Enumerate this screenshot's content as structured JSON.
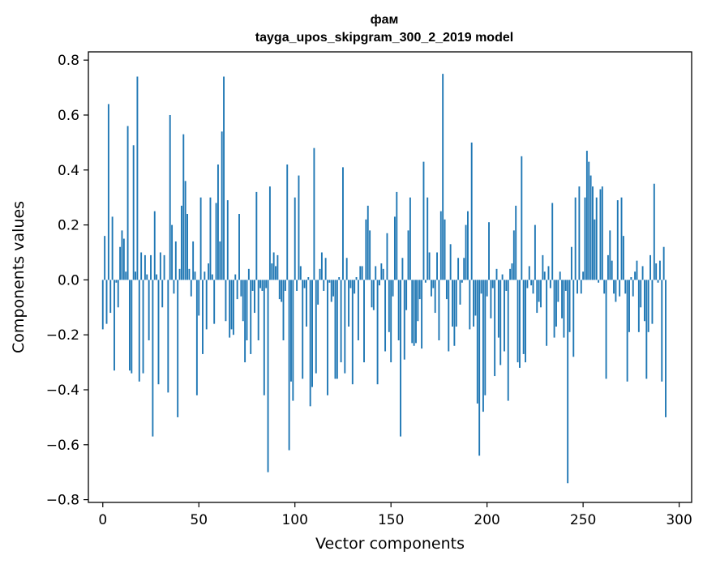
{
  "chart_data": {
    "type": "bar",
    "title": "фам",
    "subtitle": "tayga_upos_skipgram_300_2_2019 model",
    "xlabel": "Vector components",
    "ylabel": "Components values",
    "xlim": [
      -7.5,
      306.5
    ],
    "ylim": [
      -0.81,
      0.83
    ],
    "xticks": [
      0,
      50,
      100,
      150,
      200,
      250,
      300
    ],
    "yticks": [
      -0.8,
      -0.6,
      -0.4,
      -0.2,
      0.0,
      0.2,
      0.4,
      0.6,
      0.8
    ],
    "ytick_labels": [
      "−0.8",
      "−0.6",
      "−0.4",
      "−0.2",
      "0.0",
      "0.2",
      "0.4",
      "0.6",
      "0.8"
    ],
    "bar_color": "#1f77b4",
    "values": [
      -0.18,
      0.16,
      -0.16,
      0.64,
      -0.12,
      0.23,
      -0.33,
      -0.01,
      -0.1,
      0.12,
      0.18,
      0.15,
      0.03,
      0.56,
      -0.33,
      -0.34,
      0.49,
      0.03,
      0.74,
      -0.37,
      0.1,
      -0.34,
      0.09,
      0.02,
      -0.22,
      0.09,
      -0.57,
      0.25,
      0.02,
      -0.38,
      0.1,
      -0.1,
      0.09,
      0.0,
      -0.41,
      0.6,
      0.2,
      -0.05,
      0.14,
      -0.5,
      0.04,
      0.27,
      0.53,
      0.36,
      0.24,
      0.04,
      -0.06,
      0.14,
      0.03,
      -0.42,
      -0.13,
      0.3,
      -0.27,
      0.03,
      -0.18,
      0.06,
      0.3,
      0.02,
      -0.16,
      0.28,
      0.42,
      0.14,
      0.54,
      0.74,
      -0.15,
      0.29,
      -0.21,
      -0.18,
      -0.2,
      0.02,
      -0.07,
      0.24,
      -0.06,
      -0.15,
      -0.3,
      -0.22,
      0.04,
      -0.27,
      -0.04,
      -0.12,
      0.32,
      -0.22,
      -0.03,
      -0.04,
      -0.42,
      -0.03,
      -0.7,
      0.34,
      0.06,
      0.1,
      0.05,
      0.09,
      -0.07,
      -0.08,
      -0.22,
      -0.04,
      0.42,
      -0.62,
      -0.37,
      -0.44,
      0.3,
      -0.04,
      0.38,
      0.05,
      -0.36,
      -0.03,
      -0.17,
      0.01,
      -0.46,
      -0.39,
      0.48,
      -0.34,
      -0.09,
      0.04,
      0.1,
      -0.04,
      0.08,
      -0.42,
      -0.01,
      -0.08,
      -0.06,
      -0.36,
      -0.36,
      0.01,
      -0.3,
      0.41,
      -0.34,
      0.08,
      -0.17,
      -0.03,
      -0.38,
      -0.05,
      0.01,
      -0.22,
      0.05,
      0.05,
      -0.3,
      0.22,
      0.27,
      0.18,
      -0.1,
      -0.11,
      0.05,
      -0.38,
      -0.02,
      0.06,
      0.04,
      -0.26,
      0.17,
      -0.19,
      -0.3,
      -0.06,
      0.23,
      0.32,
      -0.22,
      -0.57,
      0.08,
      -0.29,
      -0.11,
      0.18,
      0.3,
      -0.23,
      -0.24,
      -0.23,
      -0.15,
      -0.07,
      -0.25,
      0.43,
      -0.01,
      0.3,
      0.1,
      -0.06,
      -0.03,
      -0.12,
      0.1,
      -0.22,
      0.25,
      0.75,
      0.22,
      -0.07,
      -0.26,
      0.13,
      -0.17,
      -0.24,
      -0.17,
      0.08,
      -0.09,
      -0.01,
      0.08,
      0.2,
      0.25,
      -0.18,
      0.5,
      -0.17,
      -0.13,
      -0.45,
      -0.64,
      -0.05,
      -0.48,
      -0.42,
      -0.06,
      0.21,
      -0.14,
      -0.03,
      -0.35,
      0.04,
      -0.21,
      -0.31,
      0.02,
      -0.26,
      -0.04,
      -0.44,
      0.04,
      0.06,
      0.18,
      0.27,
      -0.3,
      -0.32,
      0.45,
      -0.27,
      -0.3,
      -0.03,
      0.05,
      -0.02,
      -0.05,
      0.2,
      -0.12,
      -0.08,
      -0.1,
      0.09,
      0.03,
      -0.24,
      0.05,
      -0.03,
      0.28,
      -0.21,
      -0.17,
      -0.08,
      0.03,
      -0.14,
      -0.21,
      -0.04,
      -0.74,
      -0.19,
      0.12,
      -0.28,
      0.3,
      -0.05,
      0.34,
      -0.05,
      0.03,
      0.3,
      0.47,
      0.43,
      0.38,
      0.34,
      0.22,
      0.3,
      -0.01,
      0.33,
      0.34,
      -0.05,
      -0.36,
      0.09,
      0.18,
      0.07,
      -0.05,
      -0.08,
      0.29,
      -0.06,
      0.3,
      0.16,
      -0.05,
      -0.37,
      -0.19,
      0.01,
      -0.06,
      0.03,
      0.07,
      -0.19,
      -0.1,
      0.05,
      -0.15,
      -0.36,
      -0.19,
      0.09,
      -0.16,
      0.35,
      0.06,
      -0.01,
      0.07,
      -0.37,
      0.12,
      -0.5
    ]
  }
}
